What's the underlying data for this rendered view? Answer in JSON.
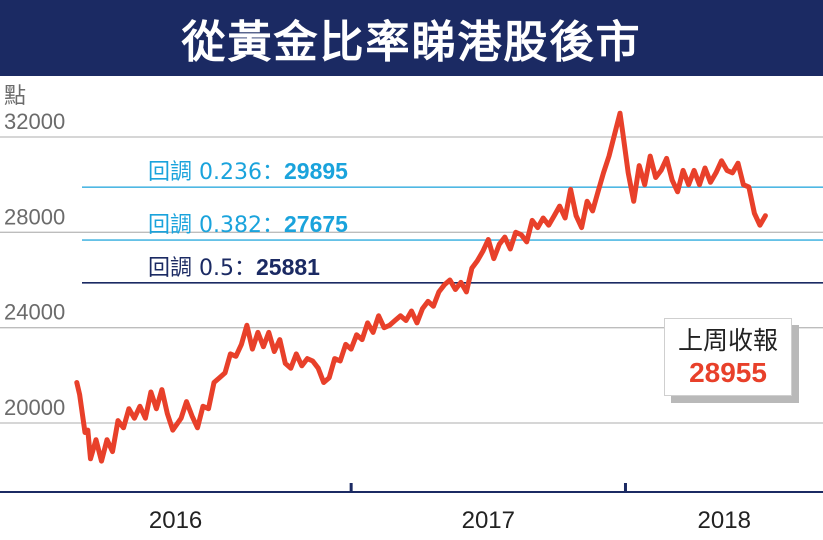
{
  "chart_data": {
    "type": "line",
    "title": "從黃金比率睇港股後市",
    "ylabel": "點",
    "ylim": [
      17000,
      33700
    ],
    "yticks": [
      20000,
      24000,
      28000,
      32000
    ],
    "xticks": [
      {
        "label": "2016",
        "year": 2016
      },
      {
        "label": "2017",
        "year": 2017
      },
      {
        "label": "2018",
        "year": 2018
      }
    ],
    "xrange": [
      2015.72,
      2018.72
    ],
    "grid": true,
    "retracements": [
      {
        "label": "回調 0.236：",
        "value": "29895",
        "level": 29895,
        "line_color": "#4fb8e3",
        "value_color": "#1aa3dc"
      },
      {
        "label": "回調 0.382：",
        "value": "27675",
        "level": 27675,
        "line_color": "#4fb8e3",
        "value_color": "#1aa3dc"
      },
      {
        "label": "回調 0.5：",
        "value": "25881",
        "level": 25881,
        "line_color": "#1b2a63",
        "value_color": "#1b2a63"
      }
    ],
    "last_close": {
      "label": "上周收報",
      "value": "28955"
    },
    "series": [
      {
        "color": "#e8402a",
        "points": [
          [
            2016.0,
            21700
          ],
          [
            2016.01,
            21200
          ],
          [
            2016.03,
            19600
          ],
          [
            2016.04,
            19700
          ],
          [
            2016.05,
            18500
          ],
          [
            2016.07,
            19300
          ],
          [
            2016.09,
            18400
          ],
          [
            2016.11,
            19300
          ],
          [
            2016.13,
            18800
          ],
          [
            2016.15,
            20100
          ],
          [
            2016.17,
            19800
          ],
          [
            2016.19,
            20600
          ],
          [
            2016.21,
            20200
          ],
          [
            2016.23,
            20700
          ],
          [
            2016.25,
            20200
          ],
          [
            2016.27,
            21300
          ],
          [
            2016.29,
            20600
          ],
          [
            2016.31,
            21400
          ],
          [
            2016.33,
            20400
          ],
          [
            2016.35,
            19700
          ],
          [
            2016.38,
            20200
          ],
          [
            2016.4,
            20900
          ],
          [
            2016.42,
            20300
          ],
          [
            2016.44,
            19800
          ],
          [
            2016.46,
            20700
          ],
          [
            2016.48,
            20600
          ],
          [
            2016.5,
            21700
          ],
          [
            2016.52,
            21900
          ],
          [
            2016.54,
            22100
          ],
          [
            2016.56,
            22900
          ],
          [
            2016.58,
            22800
          ],
          [
            2016.6,
            23300
          ],
          [
            2016.62,
            24100
          ],
          [
            2016.64,
            23100
          ],
          [
            2016.66,
            23800
          ],
          [
            2016.68,
            23200
          ],
          [
            2016.7,
            23800
          ],
          [
            2016.72,
            23000
          ],
          [
            2016.74,
            23500
          ],
          [
            2016.76,
            22500
          ],
          [
            2016.78,
            22300
          ],
          [
            2016.8,
            22900
          ],
          [
            2016.82,
            22400
          ],
          [
            2016.84,
            22700
          ],
          [
            2016.86,
            22600
          ],
          [
            2016.88,
            22300
          ],
          [
            2016.9,
            21700
          ],
          [
            2016.92,
            21900
          ],
          [
            2016.94,
            22700
          ],
          [
            2016.96,
            22600
          ],
          [
            2016.98,
            23300
          ],
          [
            2017.0,
            23100
          ],
          [
            2017.02,
            23700
          ],
          [
            2017.04,
            23500
          ],
          [
            2017.06,
            24200
          ],
          [
            2017.08,
            23800
          ],
          [
            2017.1,
            24500
          ],
          [
            2017.12,
            24000
          ],
          [
            2017.14,
            24100
          ],
          [
            2017.16,
            24300
          ],
          [
            2017.18,
            24500
          ],
          [
            2017.2,
            24300
          ],
          [
            2017.22,
            24700
          ],
          [
            2017.24,
            24200
          ],
          [
            2017.26,
            24800
          ],
          [
            2017.28,
            25100
          ],
          [
            2017.3,
            24900
          ],
          [
            2017.32,
            25500
          ],
          [
            2017.34,
            25800
          ],
          [
            2017.36,
            26000
          ],
          [
            2017.38,
            25600
          ],
          [
            2017.4,
            25900
          ],
          [
            2017.42,
            25500
          ],
          [
            2017.44,
            26500
          ],
          [
            2017.46,
            26800
          ],
          [
            2017.48,
            27200
          ],
          [
            2017.5,
            27700
          ],
          [
            2017.52,
            26900
          ],
          [
            2017.54,
            27500
          ],
          [
            2017.56,
            27800
          ],
          [
            2017.58,
            27300
          ],
          [
            2017.6,
            28000
          ],
          [
            2017.62,
            27900
          ],
          [
            2017.64,
            27600
          ],
          [
            2017.66,
            28500
          ],
          [
            2017.68,
            28200
          ],
          [
            2017.7,
            28600
          ],
          [
            2017.72,
            28300
          ],
          [
            2017.74,
            28700
          ],
          [
            2017.76,
            29100
          ],
          [
            2017.78,
            28600
          ],
          [
            2017.8,
            29800
          ],
          [
            2017.82,
            28700
          ],
          [
            2017.84,
            28200
          ],
          [
            2017.86,
            29300
          ],
          [
            2017.88,
            28900
          ],
          [
            2017.9,
            29700
          ],
          [
            2017.92,
            30500
          ],
          [
            2017.94,
            31200
          ],
          [
            2017.96,
            32100
          ],
          [
            2017.98,
            33000
          ],
          [
            2017.99,
            32200
          ],
          [
            2018.01,
            30500
          ],
          [
            2018.03,
            29300
          ],
          [
            2018.05,
            30800
          ],
          [
            2018.07,
            30000
          ],
          [
            2018.09,
            31200
          ],
          [
            2018.11,
            30300
          ],
          [
            2018.13,
            30600
          ],
          [
            2018.15,
            31100
          ],
          [
            2018.17,
            30200
          ],
          [
            2018.19,
            29700
          ],
          [
            2018.21,
            30600
          ],
          [
            2018.23,
            30000
          ],
          [
            2018.25,
            30600
          ],
          [
            2018.27,
            30000
          ],
          [
            2018.29,
            30700
          ],
          [
            2018.31,
            30100
          ],
          [
            2018.33,
            30500
          ],
          [
            2018.35,
            31000
          ],
          [
            2018.37,
            30600
          ],
          [
            2018.39,
            30500
          ],
          [
            2018.41,
            30900
          ],
          [
            2018.43,
            30000
          ],
          [
            2018.45,
            29900
          ],
          [
            2018.47,
            28800
          ],
          [
            2018.49,
            28300
          ],
          [
            2018.51,
            28700
          ]
        ]
      }
    ]
  }
}
